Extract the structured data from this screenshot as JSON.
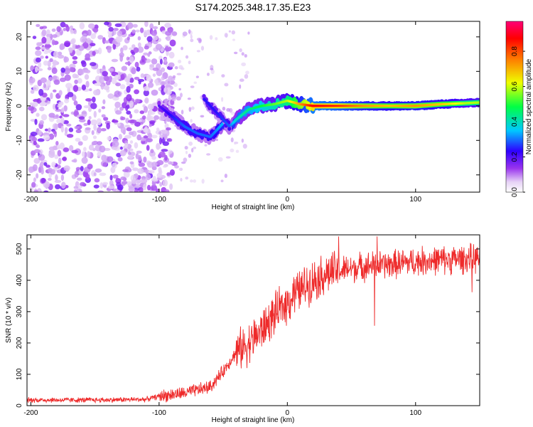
{
  "title": "S174.2025.348.17.35.E23",
  "chart_data": [
    {
      "type": "heatmap",
      "xlabel": "Height of straight line (km)",
      "ylabel": "Frequency (Hz)",
      "xlim": [
        -203,
        150
      ],
      "ylim": [
        -25,
        24.5
      ],
      "xticks": [
        -200,
        -100,
        0,
        100
      ],
      "xtick_labels": [
        "-200",
        "-100",
        "0",
        "100"
      ],
      "yticks": [
        -20,
        -10,
        0,
        10,
        20
      ],
      "ytick_labels": [
        "-20",
        "-10",
        "0",
        "10",
        "20"
      ],
      "colorbar": {
        "label": "Normalized spectral amplitude",
        "range": [
          0,
          0.97
        ],
        "ticks": [
          0.0,
          0.2,
          0.4,
          0.6,
          0.8
        ],
        "tick_labels": [
          "0.0",
          "0.2",
          "0.4",
          "0.6",
          "0.8"
        ]
      },
      "ridge": {
        "x": [
          -100,
          -90,
          -80,
          -70,
          -60,
          -50,
          -45,
          -40,
          -30,
          -20,
          -10,
          0,
          10,
          20,
          40,
          60,
          80,
          100,
          120,
          140,
          150
        ],
        "freq": [
          0,
          -3,
          -6,
          -8,
          -9,
          -5,
          -6,
          -4,
          -1,
          0,
          0.5,
          1.5,
          0.5,
          0,
          0,
          0,
          0,
          0,
          0.5,
          0.8,
          1.0
        ],
        "amplitude": [
          0.2,
          0.25,
          0.3,
          0.3,
          0.3,
          0.35,
          0.3,
          0.4,
          0.45,
          0.5,
          0.55,
          0.6,
          0.75,
          0.9,
          0.85,
          0.75,
          0.7,
          0.75,
          0.7,
          0.6,
          0.6
        ]
      },
      "branch": {
        "x": [
          -65,
          -55,
          -45
        ],
        "freq": [
          2,
          -2,
          -6
        ],
        "amplitude": [
          0.25,
          0.25,
          0.3
        ]
      },
      "noise_region": {
        "x": [
          -200,
          -100
        ],
        "freq": [
          -25,
          24
        ],
        "amplitude_max": 0.15
      }
    },
    {
      "type": "line",
      "xlabel": "Height of straight line (km)",
      "ylabel": "SNR (10 * v/v)",
      "xlim": [
        -203,
        150
      ],
      "ylim": [
        0,
        545
      ],
      "xticks": [
        -200,
        -100,
        0,
        100
      ],
      "xtick_labels": [
        "-200",
        "-100",
        "0",
        "100"
      ],
      "yticks": [
        0,
        100,
        200,
        300,
        400,
        500
      ],
      "ytick_labels": [
        "0",
        "100",
        "200",
        "300",
        "400",
        "500"
      ],
      "series": [
        {
          "name": "SNR",
          "color": "#ee2a2a",
          "x": [
            -203,
            -150,
            -110,
            -100,
            -80,
            -60,
            -50,
            -40,
            -30,
            -20,
            -10,
            0,
            10,
            20,
            30,
            40,
            60,
            80,
            100,
            120,
            150
          ],
          "y": [
            18,
            18,
            20,
            30,
            40,
            60,
            110,
            170,
            200,
            240,
            290,
            330,
            370,
            400,
            420,
            430,
            445,
            450,
            460,
            465,
            470
          ],
          "spikes": [
            {
              "x": 40,
              "y": 540
            },
            {
              "x": 70,
              "y": 540
            },
            {
              "x": 68,
              "y": 255
            },
            {
              "x": 144,
              "y": 362
            },
            {
              "x": 5,
              "y": 410
            }
          ]
        }
      ]
    }
  ]
}
